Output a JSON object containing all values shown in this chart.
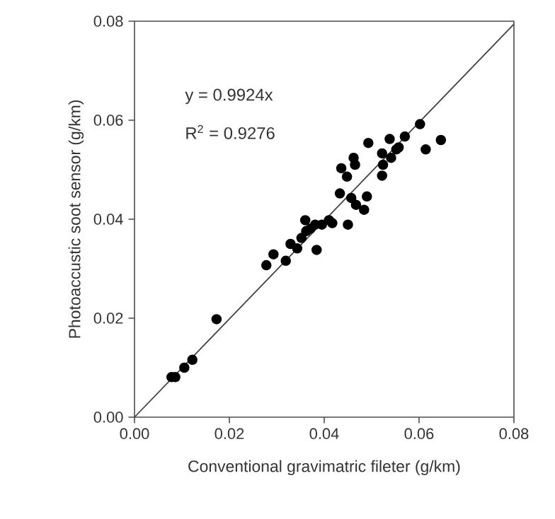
{
  "chart_data": {
    "type": "scatter",
    "xlabel": "Conventional gravimatric fileter (g/km)",
    "ylabel": "Photoaccustic soot sensor (g/km)",
    "annotations": [
      "y = 0.9924x",
      "R$^{2}$ = 0.9276"
    ],
    "xlim": [
      0,
      0.08
    ],
    "ylim": [
      0,
      0.08
    ],
    "xticks": [
      {
        "value": 0,
        "label": "0.00"
      },
      {
        "value": 0.02,
        "label": "0.02"
      },
      {
        "value": 0.04,
        "label": "0.04"
      },
      {
        "value": 0.06,
        "label": "0.06"
      },
      {
        "value": 0.08,
        "label": "0.08"
      }
    ],
    "yticks": [
      {
        "value": 0,
        "label": "0.00"
      },
      {
        "value": 0.02,
        "label": "0.02"
      },
      {
        "value": 0.04,
        "label": "0.04"
      },
      {
        "value": 0.06,
        "label": "0.06"
      },
      {
        "value": 0.08,
        "label": "0.08"
      }
    ],
    "series": [
      {
        "color": "#000000",
        "marker": "circle",
        "x": [
          0.0078,
          0.0086,
          0.0105,
          0.0122,
          0.0173,
          0.0278,
          0.0293,
          0.0319,
          0.0329,
          0.0343,
          0.0352,
          0.0362,
          0.036,
          0.0371,
          0.0381,
          0.0384,
          0.0395,
          0.041,
          0.0417,
          0.0433,
          0.0436,
          0.0448,
          0.045,
          0.0462,
          0.0465,
          0.0457,
          0.0467,
          0.0484,
          0.049,
          0.0493,
          0.0522,
          0.0524,
          0.0522,
          0.0538,
          0.0541,
          0.0552,
          0.0557,
          0.057,
          0.0602,
          0.0614,
          0.0646
        ],
        "values": [
          0.0081,
          0.0081,
          0.01,
          0.0116,
          0.0198,
          0.0307,
          0.0329,
          0.0316,
          0.035,
          0.0341,
          0.0362,
          0.0376,
          0.0398,
          0.0381,
          0.0389,
          0.0338,
          0.0389,
          0.0398,
          0.0392,
          0.0452,
          0.0503,
          0.0486,
          0.0389,
          0.0524,
          0.051,
          0.0443,
          0.0429,
          0.0419,
          0.0446,
          0.0554,
          0.0488,
          0.051,
          0.0533,
          0.0562,
          0.0524,
          0.0541,
          0.0545,
          0.0567,
          0.0592,
          0.0541,
          0.056
        ]
      },
      {
        "type": "line",
        "color": "#404040",
        "marker": "none",
        "x": [
          0,
          0.08
        ],
        "values": [
          0,
          0.0794
        ]
      }
    ]
  }
}
